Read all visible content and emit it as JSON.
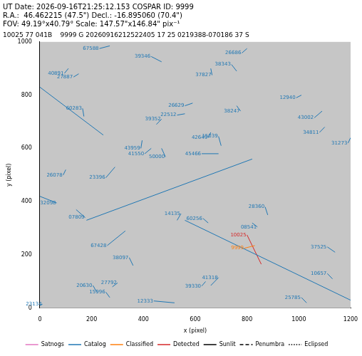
{
  "chart_data": {
    "type": "scatter",
    "header": [
      "UT Date: 2026-09-16T21:25:12.153 COSPAR ID: 9999",
      "R.A.:  46.462215 (47.5\") Decl.: -16.895060 (70.4\")",
      "FOV: 49.19°x40.79° Scale: 147.57\"x146.84\" pix⁻¹"
    ],
    "title": "10025 77 041B    9999 G 20260916212522405 17 25 0219388-070186 37 S",
    "x_label": "x (pixel)",
    "y_label": "y (pixel)",
    "xlim": [
      0,
      1200
    ],
    "ylim": [
      0,
      1000
    ],
    "xticks": [
      0,
      200,
      400,
      600,
      800,
      1000,
      1200
    ],
    "yticks": [
      0,
      200,
      400,
      600,
      800,
      1000
    ],
    "grid": false,
    "legend": "bottom",
    "series": [
      {
        "name": "Satnogs",
        "color": "#e377c2",
        "line_style": "solid",
        "tracks": []
      },
      {
        "name": "Catalog",
        "color": "#1f77b4",
        "line_style": "solid",
        "tracks": [
          {
            "label": "67588",
            "x": [
              230,
              270
            ],
            "y": [
              975,
              985
            ]
          },
          {
            "label": "39346",
            "x": [
              430,
              470
            ],
            "y": [
              945,
              925
            ]
          },
          {
            "label": "40891",
            "x": [
              95,
              110
            ],
            "y": [
              882,
              900
            ]
          },
          {
            "label": "27887",
            "x": [
              130,
              150
            ],
            "y": [
              868,
              880
            ]
          },
          {
            "label": "38343",
            "x": [
              740,
              760
            ],
            "y": [
              915,
              890
            ]
          },
          {
            "label": "26686",
            "x": [
              780,
              800
            ],
            "y": [
              958,
              975
            ]
          },
          {
            "label": "37827",
            "x": [
              665,
              660
            ],
            "y": [
              875,
              900
            ]
          },
          {
            "label": "60283",
            "x": [
              165,
              170
            ],
            "y": [
              750,
              720
            ]
          },
          {
            "label": "26629",
            "x": [
              560,
              590
            ],
            "y": [
              760,
              770
            ]
          },
          {
            "label": "38247",
            "x": [
              775,
              760
            ],
            "y": [
              740,
              760
            ]
          },
          {
            "label": "22512",
            "x": [
              530,
              560
            ],
            "y": [
              725,
              730
            ]
          },
          {
            "label": "39352",
            "x": [
              470,
              450
            ],
            "y": [
              710,
              690
            ]
          },
          {
            "label": "43959",
            "x": [
              390,
              395
            ],
            "y": [
              600,
              630
            ]
          },
          {
            "label": "41550",
            "x": [
              405,
              430
            ],
            "y": [
              580,
              600
            ]
          },
          {
            "label": "50000",
            "x": [
              485,
              470
            ],
            "y": [
              568,
              600
            ]
          },
          {
            "label": "45466",
            "x": [
              625,
              690
            ],
            "y": [
              580,
              580
            ]
          },
          {
            "label": "42649",
            "x": [
              650,
              660
            ],
            "y": [
              640,
              660
            ]
          },
          {
            "label": "15039",
            "x": [
              690,
              700
            ],
            "y": [
              645,
              610
            ]
          },
          {
            "label": "26078",
            "x": [
              90,
              100
            ],
            "y": [
              500,
              520
            ]
          },
          {
            "label": "23396",
            "x": [
              255,
              290
            ],
            "y": [
              490,
              530
            ]
          },
          {
            "label": "32098",
            "x": [
              65,
              0
            ],
            "y": [
              395,
              420
            ]
          },
          {
            "label": "07809",
            "x": [
              175,
              140
            ],
            "y": [
              340,
              370
            ]
          },
          {
            "label": "14135",
            "x": [
              545,
              530
            ],
            "y": [
              355,
              330
            ]
          },
          {
            "label": "28360",
            "x": [
              870,
              880
            ],
            "y": [
              380,
              350
            ]
          },
          {
            "label": "60256",
            "x": [
              630,
              650
            ],
            "y": [
              337,
              320
            ]
          },
          {
            "label": "08541",
            "x": [
              840,
              820
            ],
            "y": [
              305,
              320
            ]
          },
          {
            "label": "67428",
            "x": [
              260,
              330
            ],
            "y": [
              235,
              290
            ]
          },
          {
            "label": "38097",
            "x": [
              345,
              360
            ],
            "y": [
              190,
              160
            ]
          },
          {
            "label": "39330",
            "x": [
              625,
              640
            ],
            "y": [
              83,
              100
            ]
          },
          {
            "label": "41318",
            "x": [
              690,
              660
            ],
            "y": [
              115,
              85
            ]
          },
          {
            "label": "20630",
            "x": [
              205,
              220
            ],
            "y": [
              85,
              60
            ]
          },
          {
            "label": "27792",
            "x": [
              300,
              280
            ],
            "y": [
              95,
              80
            ]
          },
          {
            "label": "15996",
            "x": [
              255,
              270
            ],
            "y": [
              60,
              40
            ]
          },
          {
            "label": "12333",
            "x": [
              440,
              520
            ],
            "y": [
              27,
              20
            ]
          },
          {
            "label": "23134",
            "x": [
              10,
              0
            ],
            "y": [
              15,
              10
            ]
          },
          {
            "label": "12940",
            "x": [
              990,
              1010
            ],
            "y": [
              790,
              800
            ]
          },
          {
            "label": "43002",
            "x": [
              1060,
              1090
            ],
            "y": [
              715,
              740
            ]
          },
          {
            "label": "34811",
            "x": [
              1080,
              1100
            ],
            "y": [
              660,
              680
            ]
          },
          {
            "label": "31273",
            "x": [
              1190,
              1200
            ],
            "y": [
              620,
              640
            ]
          },
          {
            "label": "37525",
            "x": [
              1110,
              1140
            ],
            "y": [
              230,
              210
            ]
          },
          {
            "label": "25785",
            "x": [
              1010,
              1030
            ],
            "y": [
              40,
              20
            ]
          },
          {
            "label": "10657",
            "x": [
              1110,
              1130
            ],
            "y": [
              130,
              110
            ]
          },
          {
            "label": null,
            "x": [
              0,
              245
            ],
            "y": [
              830,
              650
            ]
          },
          {
            "label": null,
            "x": [
              180,
              820
            ],
            "y": [
              330,
              560
            ]
          },
          {
            "label": null,
            "x": [
              560,
              1200
            ],
            "y": [
              330,
              30
            ]
          }
        ]
      },
      {
        "name": "Classified",
        "color": "#ff7f0e",
        "line_style": "solid",
        "tracks": [
          {
            "label": "9999",
            "x": [
              790,
              830
            ],
            "y": [
              225,
              235
            ]
          }
        ]
      },
      {
        "name": "Detected",
        "color": "#d62728",
        "line_style": "solid",
        "tracks": [
          {
            "label": "10025",
            "x": [
              800,
              855
            ],
            "y": [
              275,
              165
            ]
          }
        ]
      },
      {
        "name": "Sunlit",
        "color": "#000000",
        "line_style": "solid",
        "tracks": []
      },
      {
        "name": "Penumbra",
        "color": "#000000",
        "line_style": "dashed",
        "tracks": []
      },
      {
        "name": "Eclipsed",
        "color": "#000000",
        "line_style": "dotted",
        "tracks": []
      }
    ]
  }
}
